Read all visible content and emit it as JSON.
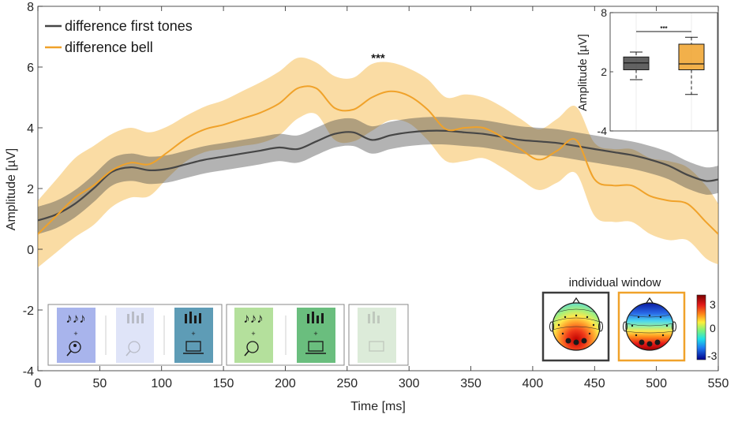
{
  "chart_data": [
    {
      "type": "line",
      "title": "",
      "xlabel": "Time [ms]",
      "ylabel": "Amplitude [µV]",
      "xlim": [
        0,
        550
      ],
      "ylim": [
        -4,
        8
      ],
      "xticks": [
        0,
        50,
        100,
        150,
        200,
        250,
        300,
        350,
        400,
        450,
        500,
        550
      ],
      "yticks": [
        -4,
        -2,
        0,
        2,
        4,
        6,
        8
      ],
      "grid": false,
      "legend_position": "top-left",
      "annotations": [
        {
          "text": "***",
          "x": 275,
          "y": 6.3
        }
      ],
      "series": [
        {
          "name": "difference first tones",
          "color": "#464646",
          "x": [
            0,
            15,
            30,
            45,
            60,
            75,
            90,
            105,
            120,
            135,
            150,
            165,
            180,
            195,
            210,
            225,
            240,
            255,
            270,
            285,
            300,
            315,
            330,
            345,
            360,
            375,
            390,
            405,
            420,
            435,
            450,
            465,
            480,
            495,
            510,
            525,
            540,
            550
          ],
          "values": [
            0.95,
            1.15,
            1.5,
            2.0,
            2.55,
            2.7,
            2.6,
            2.65,
            2.8,
            2.95,
            3.05,
            3.15,
            3.25,
            3.35,
            3.3,
            3.55,
            3.8,
            3.85,
            3.6,
            3.75,
            3.85,
            3.9,
            3.9,
            3.85,
            3.8,
            3.7,
            3.6,
            3.55,
            3.5,
            3.4,
            3.3,
            3.2,
            3.1,
            2.95,
            2.75,
            2.45,
            2.25,
            2.3
          ],
          "upper": [
            1.4,
            1.6,
            1.95,
            2.45,
            3.0,
            3.15,
            3.05,
            3.1,
            3.25,
            3.4,
            3.5,
            3.6,
            3.7,
            3.8,
            3.75,
            4.0,
            4.25,
            4.3,
            4.05,
            4.2,
            4.3,
            4.35,
            4.35,
            4.3,
            4.25,
            4.15,
            4.05,
            4.0,
            3.95,
            3.85,
            3.75,
            3.65,
            3.55,
            3.4,
            3.2,
            2.9,
            2.7,
            2.75
          ],
          "lower": [
            0.5,
            0.7,
            1.05,
            1.55,
            2.1,
            2.25,
            2.15,
            2.2,
            2.35,
            2.5,
            2.6,
            2.7,
            2.8,
            2.9,
            2.85,
            3.1,
            3.35,
            3.4,
            3.15,
            3.3,
            3.4,
            3.45,
            3.45,
            3.4,
            3.35,
            3.25,
            3.15,
            3.1,
            3.05,
            2.95,
            2.85,
            2.75,
            2.65,
            2.5,
            2.3,
            2.0,
            1.8,
            1.85
          ]
        },
        {
          "name": "difference bell",
          "color": "#f0a22a",
          "x": [
            0,
            15,
            30,
            45,
            60,
            75,
            90,
            105,
            120,
            135,
            150,
            165,
            180,
            195,
            210,
            225,
            240,
            255,
            270,
            285,
            300,
            315,
            330,
            345,
            360,
            375,
            390,
            405,
            420,
            435,
            450,
            465,
            480,
            495,
            510,
            525,
            540,
            550
          ],
          "values": [
            0.5,
            1.1,
            1.7,
            2.1,
            2.6,
            2.85,
            2.8,
            3.2,
            3.65,
            3.95,
            4.1,
            4.3,
            4.5,
            4.8,
            5.3,
            5.3,
            4.65,
            4.6,
            5.0,
            5.2,
            5.05,
            4.6,
            3.95,
            4.0,
            4.0,
            3.7,
            3.3,
            2.95,
            3.25,
            3.6,
            2.3,
            2.1,
            2.1,
            1.75,
            1.6,
            1.5,
            0.9,
            0.5
          ]
        }
      ],
      "band_upper_bell": [
        1.6,
        2.3,
        3.0,
        3.4,
        3.8,
        4.0,
        3.85,
        4.05,
        4.4,
        4.7,
        4.9,
        5.2,
        5.5,
        5.85,
        6.3,
        6.15,
        5.7,
        5.65,
        6.1,
        6.15,
        5.95,
        5.6,
        5.0,
        5.1,
        5.0,
        4.7,
        4.3,
        3.95,
        4.3,
        4.7,
        3.5,
        3.3,
        3.3,
        3.0,
        2.9,
        2.7,
        2.1,
        1.5
      ],
      "band_lower_bell": [
        -0.6,
        -0.1,
        0.4,
        0.8,
        1.4,
        1.7,
        1.75,
        2.35,
        2.9,
        3.2,
        3.3,
        3.4,
        3.5,
        3.75,
        4.3,
        4.45,
        3.6,
        3.55,
        3.9,
        4.25,
        4.15,
        3.6,
        2.9,
        2.9,
        3.0,
        2.7,
        2.3,
        1.95,
        2.2,
        2.5,
        1.1,
        0.9,
        0.9,
        0.5,
        0.3,
        0.3,
        -0.3,
        -0.5
      ]
    },
    {
      "type": "box",
      "ylabel": "Amplitude [µV]",
      "ylim": [
        -4,
        8
      ],
      "yticks": [
        -4,
        2,
        8
      ],
      "significance": "***",
      "groups": [
        {
          "name": "difference first tones",
          "color": "#464646",
          "whisker_low": 1.2,
          "q1": 2.2,
          "median": 2.9,
          "q3": 3.5,
          "whisker_high": 4.0
        },
        {
          "name": "difference bell",
          "color": "#f0a22a",
          "whisker_low": -0.3,
          "q1": 2.2,
          "median": 2.8,
          "q3": 4.8,
          "whisker_high": 5.5
        }
      ]
    }
  ],
  "legend": {
    "items": [
      {
        "label": "difference first tones",
        "color": "#464646"
      },
      {
        "label": "difference bell",
        "color": "#f0a22a"
      }
    ]
  },
  "topography": {
    "title": "individual window",
    "colorbar_ticks": [
      "3",
      "0",
      "-3"
    ],
    "frames": [
      {
        "name": "first tones map",
        "border": "#3c3c3c"
      },
      {
        "name": "bell map",
        "border": "#f0a22a"
      }
    ]
  },
  "stimuli": {
    "groups": [
      {
        "name": "group-1",
        "panels": [
          {
            "name": "notes-listener",
            "color": "#a8b4ec"
          },
          {
            "name": "faded-listener",
            "color": "#dfe4f8"
          },
          {
            "name": "city-laptop",
            "color": "#5e9cb6"
          }
        ]
      },
      {
        "name": "group-2",
        "panels": [
          {
            "name": "notes-listener-green",
            "color": "#b4e09c"
          },
          {
            "name": "city-laptop-green",
            "color": "#6abe7e"
          }
        ]
      },
      {
        "name": "group-3",
        "panels": [
          {
            "name": "faded-green",
            "color": "#dcebd9"
          }
        ]
      }
    ]
  }
}
